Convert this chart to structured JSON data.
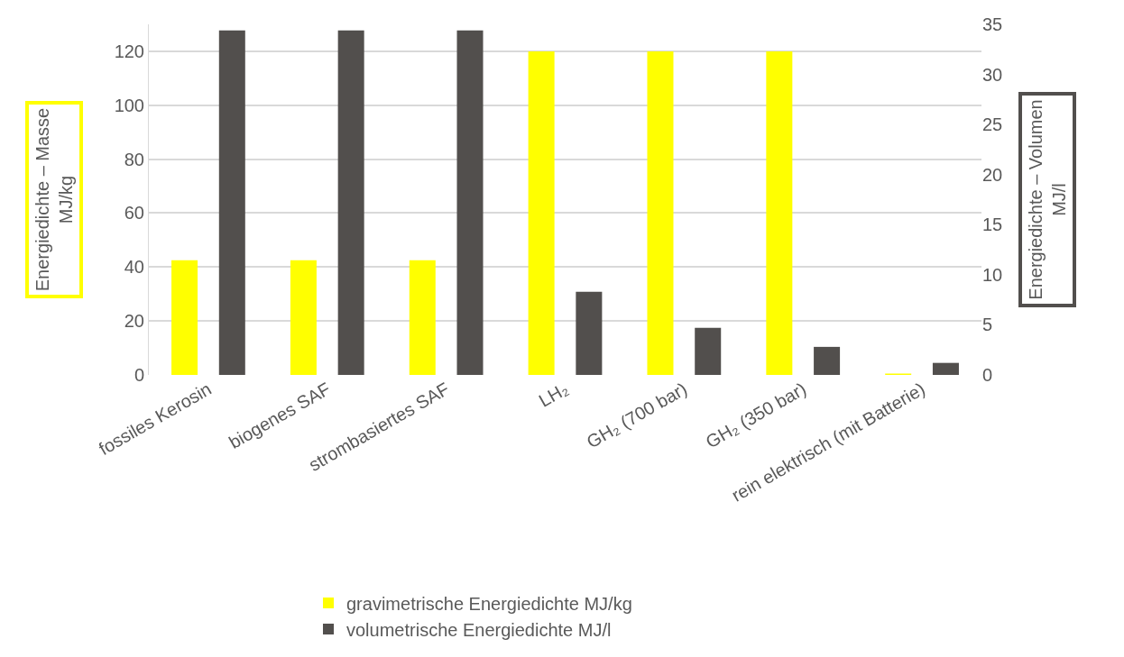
{
  "chart_data": {
    "type": "bar",
    "ylabel": "Energiedichte – Masse\nMJ/kg",
    "y2label": "Energiedichte – Volumen\nMJ/l",
    "categories": [
      "fossiles Kerosin",
      "biogenes SAF",
      "strombasiertes SAF",
      "LH₂",
      "GH₂ (700 bar)",
      "GH₂ (350 bar)",
      "rein elektrisch (mit Batterie)"
    ],
    "series": [
      {
        "name": "gravimetrische Energiedichte MJ/kg",
        "color": "#ffff00",
        "values": [
          42.5,
          42.5,
          42.5,
          120,
          120,
          120,
          0.5
        ]
      },
      {
        "name": "volumetrische Energiedichte MJ/l",
        "color": "#524f4d",
        "axis": "y2",
        "values": [
          34.4,
          34.4,
          34.4,
          8.3,
          4.7,
          2.8,
          1.2
        ]
      }
    ],
    "ylim": [
      0,
      130
    ],
    "yticks": [
      0,
      20,
      40,
      60,
      80,
      100,
      120
    ],
    "y2lim": [
      0,
      35
    ],
    "y2ticks": [
      0,
      5,
      10,
      15,
      20,
      25,
      30,
      35
    ],
    "grid": "y",
    "legend": "bottom"
  }
}
